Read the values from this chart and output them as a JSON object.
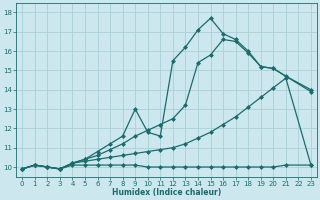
{
  "xlabel": "Humidex (Indice chaleur)",
  "bg_color": "#cce8ee",
  "line_color": "#1a6b6b",
  "grid_color": "#aacfd8",
  "ylim": [
    9.5,
    18.5
  ],
  "xlim": [
    -0.5,
    23.5
  ],
  "yticks": [
    10,
    11,
    12,
    13,
    14,
    15,
    16,
    17,
    18
  ],
  "xticks": [
    0,
    1,
    2,
    3,
    4,
    5,
    6,
    7,
    8,
    9,
    10,
    11,
    12,
    13,
    14,
    15,
    16,
    17,
    18,
    19,
    20,
    21,
    22,
    23
  ],
  "line1_x": [
    0,
    1,
    2,
    3,
    4,
    5,
    6,
    7,
    8,
    9,
    10,
    11,
    12,
    13,
    14,
    15,
    16,
    17,
    18,
    19,
    20,
    21,
    23
  ],
  "line1_y": [
    9.9,
    10.1,
    10.0,
    9.9,
    10.2,
    10.3,
    10.4,
    10.5,
    10.6,
    10.7,
    10.8,
    10.9,
    11.0,
    11.2,
    11.5,
    11.8,
    12.2,
    12.6,
    13.1,
    13.6,
    14.1,
    14.6,
    10.1
  ],
  "line2_x": [
    0,
    1,
    2,
    3,
    4,
    5,
    6,
    7,
    8,
    9,
    10,
    11,
    12,
    13,
    14,
    15,
    16,
    17,
    18,
    19,
    20,
    21,
    23
  ],
  "line2_y": [
    9.9,
    10.1,
    10.0,
    9.9,
    10.2,
    10.4,
    10.6,
    10.9,
    11.2,
    11.6,
    11.9,
    12.2,
    12.5,
    13.2,
    15.4,
    15.8,
    16.6,
    16.5,
    15.9,
    15.2,
    15.1,
    14.7,
    14.0
  ],
  "line3_x": [
    0,
    1,
    2,
    3,
    4,
    5,
    6,
    7,
    8,
    9,
    10,
    11,
    12,
    13,
    14,
    15,
    16,
    17,
    18,
    19,
    20,
    23
  ],
  "line3_y": [
    9.9,
    10.1,
    10.0,
    9.9,
    10.2,
    10.4,
    10.8,
    11.2,
    11.6,
    13.0,
    11.8,
    11.6,
    15.5,
    16.2,
    17.1,
    17.7,
    16.9,
    16.6,
    16.0,
    15.2,
    15.1,
    13.9
  ],
  "flat_x": [
    0,
    1,
    2,
    3,
    4,
    5,
    6,
    7,
    8,
    9,
    10,
    11,
    12,
    13,
    14,
    15,
    16,
    17,
    18,
    19,
    20,
    21,
    23
  ],
  "flat_y": [
    9.9,
    10.1,
    10.0,
    9.9,
    10.1,
    10.1,
    10.1,
    10.1,
    10.1,
    10.1,
    10.0,
    10.0,
    10.0,
    10.0,
    10.0,
    10.0,
    10.0,
    10.0,
    10.0,
    10.0,
    10.0,
    10.1,
    10.1
  ]
}
